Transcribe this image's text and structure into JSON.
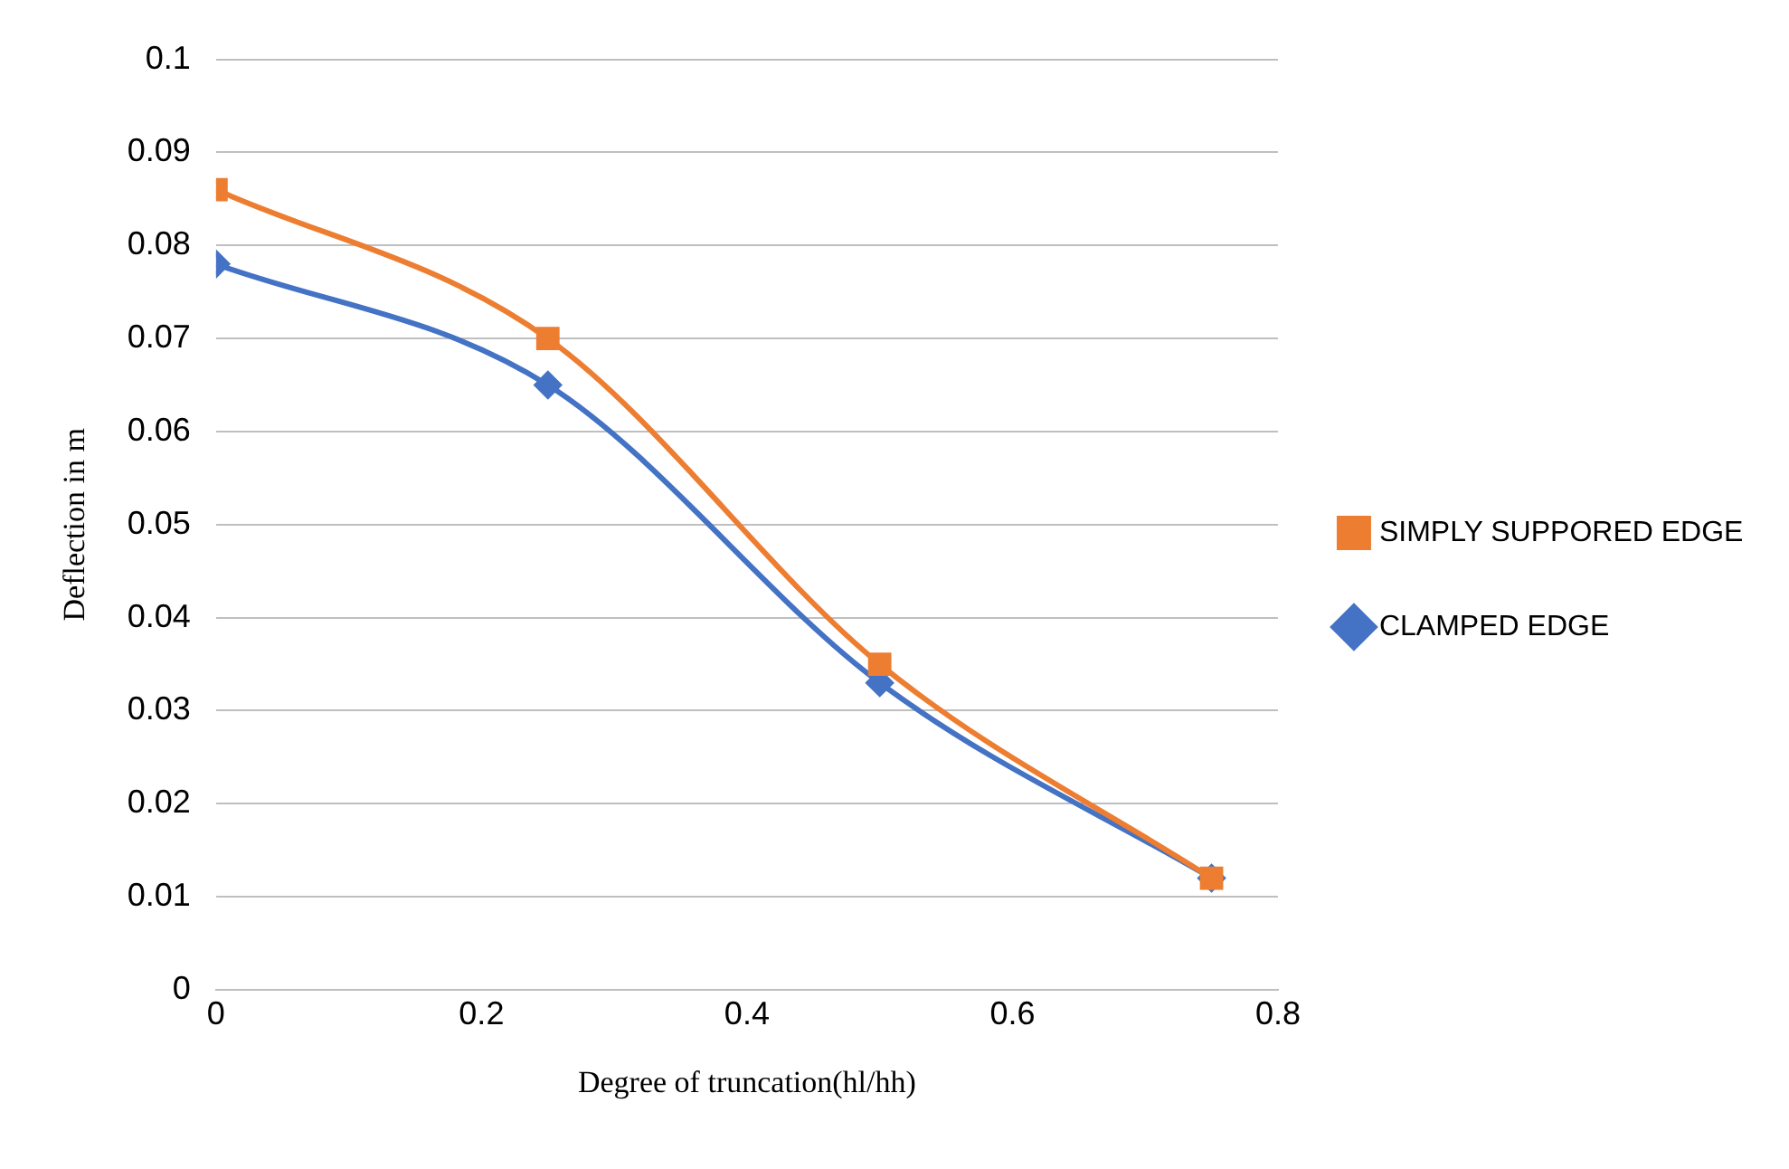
{
  "chart_data": {
    "type": "line",
    "xlabel": "Degree of truncation(hl/hh)",
    "ylabel": "Deflection in m",
    "x": [
      0,
      0.25,
      0.5,
      0.75
    ],
    "series": [
      {
        "name": "CLAMPED EDGE",
        "color": "#4472c4",
        "marker": "diamond",
        "values": [
          0.078,
          0.065,
          0.033,
          0.012
        ]
      },
      {
        "name": "SIMPLY SUPPORED EDGE",
        "color": "#ed7d31",
        "marker": "square",
        "values": [
          0.086,
          0.07,
          0.035,
          0.012
        ]
      }
    ],
    "xlim": [
      0,
      0.8
    ],
    "xticks": [
      0,
      0.2,
      0.4,
      0.6,
      0.8
    ],
    "ylim": [
      0,
      0.1
    ],
    "yticks": [
      0,
      0.01,
      0.02,
      0.03,
      0.04,
      0.05,
      0.06,
      0.07,
      0.08,
      0.09,
      0.1
    ],
    "grid": "y",
    "legend": "right",
    "line_style": "solid"
  }
}
